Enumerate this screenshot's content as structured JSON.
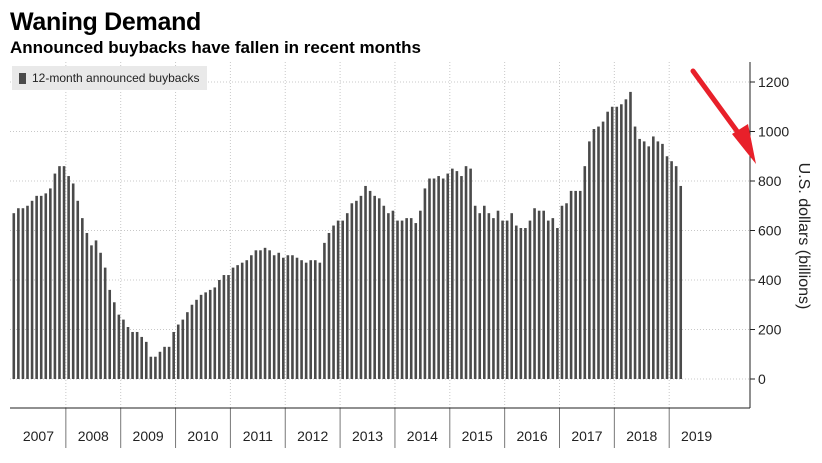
{
  "title": "Waning Demand",
  "subtitle": "Announced buybacks have fallen in recent months",
  "chart_data": {
    "type": "bar",
    "series": [
      {
        "name": "12-month announced buybacks",
        "color": "#4a4a4a"
      }
    ],
    "ylabel": "U.S. dollars (billions)",
    "xlabel": "",
    "ylim": [
      -120,
      1270
    ],
    "yticks": [
      0,
      200,
      400,
      600,
      800,
      1000,
      1200
    ],
    "years": [
      "2007",
      "2008",
      "2009",
      "2010",
      "2011",
      "2012",
      "2013",
      "2014",
      "2015",
      "2016",
      "2017",
      "2018",
      "2019"
    ],
    "grid": true,
    "legend_position": "top-left",
    "annotation": {
      "type": "arrow",
      "color": "#e8202a",
      "points_to": "recent decline"
    },
    "values": [
      670,
      690,
      690,
      700,
      720,
      740,
      740,
      750,
      770,
      830,
      860,
      860,
      820,
      790,
      720,
      650,
      590,
      540,
      560,
      510,
      450,
      360,
      310,
      260,
      240,
      210,
      190,
      190,
      170,
      150,
      90,
      90,
      110,
      130,
      130,
      190,
      220,
      240,
      270,
      300,
      320,
      340,
      350,
      360,
      370,
      400,
      420,
      420,
      450,
      460,
      470,
      480,
      500,
      520,
      520,
      530,
      520,
      500,
      510,
      490,
      500,
      500,
      490,
      480,
      470,
      480,
      480,
      470,
      550,
      590,
      620,
      640,
      640,
      670,
      710,
      720,
      740,
      780,
      760,
      740,
      730,
      700,
      670,
      680,
      640,
      640,
      650,
      650,
      630,
      680,
      770,
      810,
      810,
      820,
      810,
      830,
      850,
      840,
      820,
      860,
      850,
      700,
      670,
      700,
      670,
      650,
      680,
      640,
      640,
      670,
      620,
      610,
      610,
      640,
      690,
      680,
      680,
      640,
      650,
      610,
      700,
      710,
      760,
      760,
      760,
      860,
      960,
      1010,
      1020,
      1040,
      1080,
      1100,
      1100,
      1110,
      1130,
      1160,
      1020,
      970,
      960,
      940,
      980,
      960,
      950,
      900,
      880,
      860,
      780
    ]
  }
}
